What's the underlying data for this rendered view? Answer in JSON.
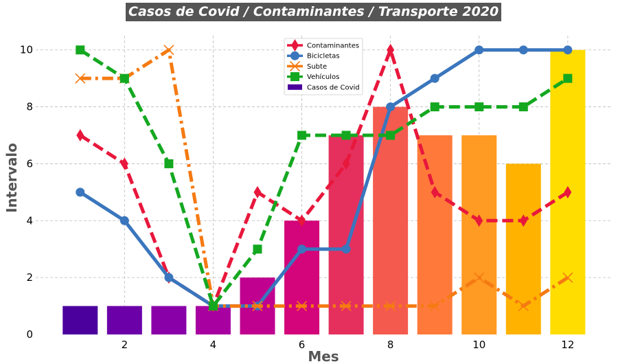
{
  "chart_data": {
    "type": "bar",
    "title": "Casos de Covid / Contaminantes / Transporte 2020",
    "xlabel": "Mes",
    "ylabel": "Intervalo",
    "xlim": [
      0.5,
      12.6
    ],
    "ylim": [
      0,
      10.5
    ],
    "xticks": [
      2,
      4,
      6,
      8,
      10,
      12
    ],
    "yticks": [
      0,
      2,
      4,
      6,
      8,
      10
    ],
    "grid": true,
    "legend_position": "top-center",
    "x": [
      1,
      2,
      3,
      4,
      5,
      6,
      7,
      8,
      9,
      10,
      11,
      12
    ],
    "bars": {
      "name": "Casos de Covid",
      "values": [
        1,
        1,
        1,
        1,
        2,
        4,
        7,
        8,
        7,
        7,
        6,
        10
      ],
      "colors": [
        "#4b009e",
        "#6b00a8",
        "#8a00a8",
        "#a800a0",
        "#c0008f",
        "#d4047a",
        "#e5305e",
        "#f55a4e",
        "#ff7a3a",
        "#ff9a22",
        "#ffb300",
        "#ffdd00"
      ],
      "legend_color": "#4b009e"
    },
    "series": [
      {
        "name": "Contaminantes",
        "values": [
          7,
          6,
          2,
          1,
          5,
          4,
          6,
          10,
          5,
          4,
          4,
          5
        ],
        "color": "#e8173c",
        "dash": "dashed",
        "marker": "thin-diamond"
      },
      {
        "name": "Bicicletas",
        "values": [
          5,
          4,
          2,
          1,
          1,
          3,
          3,
          8,
          9,
          10,
          10,
          10
        ],
        "color": "#3a76bd",
        "dash": "solid",
        "marker": "circle"
      },
      {
        "name": "Subte",
        "values": [
          9,
          9,
          10,
          1,
          1,
          1,
          1,
          1,
          1,
          2,
          1,
          2
        ],
        "color": "#f57a12",
        "dash": "dashdot",
        "marker": "x"
      },
      {
        "name": "Vehículos",
        "values": [
          10,
          9,
          6,
          1,
          3,
          7,
          7,
          7,
          8,
          8,
          8,
          9
        ],
        "color": "#14a820",
        "dash": "dashed",
        "marker": "square"
      }
    ]
  }
}
